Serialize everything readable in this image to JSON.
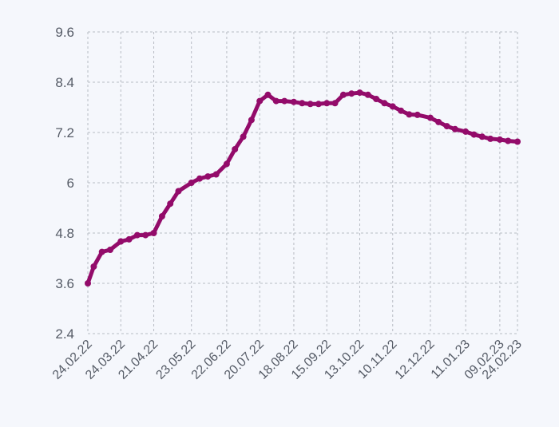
{
  "chart_data": {
    "type": "line",
    "title": "",
    "xlabel": "",
    "ylabel": "",
    "ylim": [
      2.4,
      9.6
    ],
    "y_ticks": [
      "9.6",
      "8.4",
      "7.2",
      "6",
      "4.8",
      "3.6",
      "2.4"
    ],
    "x_tick_labels": [
      "24.02.22",
      "24.03.22",
      "21.04.22",
      "23.05.22",
      "22.06.22",
      "20.07.22",
      "18.08.22",
      "15.09.22",
      "13.10.22",
      "10.11.22",
      "12.12.22",
      "11.01.23",
      "09.02.23",
      "24.02.23"
    ],
    "grid": true,
    "legend": "none",
    "series": [
      {
        "color": "#930b6a",
        "x": [
          "24.02.22",
          "01.03.22",
          "08.03.22",
          "15.03.22",
          "24.03.22",
          "31.03.22",
          "07.04.22",
          "14.04.22",
          "21.04.22",
          "28.04.22",
          "05.05.22",
          "12.05.22",
          "23.05.22",
          "30.05.22",
          "06.06.22",
          "13.06.22",
          "22.06.22",
          "29.06.22",
          "06.07.22",
          "13.07.22",
          "20.07.22",
          "27.07.22",
          "03.08.22",
          "10.08.22",
          "18.08.22",
          "25.08.22",
          "01.09.22",
          "08.09.22",
          "15.09.22",
          "22.09.22",
          "29.09.22",
          "06.10.22",
          "13.10.22",
          "20.10.22",
          "27.10.22",
          "03.11.22",
          "10.11.22",
          "17.11.22",
          "24.11.22",
          "01.12.22",
          "12.12.22",
          "19.12.22",
          "26.12.22",
          "02.01.23",
          "11.01.23",
          "18.01.23",
          "25.01.23",
          "01.02.23",
          "09.02.23",
          "16.02.23",
          "24.02.23"
        ],
        "y": [
          3.6,
          4.0,
          4.35,
          4.4,
          4.6,
          4.65,
          4.75,
          4.75,
          4.8,
          5.2,
          5.5,
          5.8,
          6.0,
          6.1,
          6.15,
          6.2,
          6.45,
          6.8,
          7.1,
          7.5,
          7.95,
          8.1,
          7.95,
          7.95,
          7.93,
          7.9,
          7.88,
          7.88,
          7.9,
          7.9,
          8.1,
          8.13,
          8.15,
          8.1,
          8.0,
          7.9,
          7.82,
          7.72,
          7.63,
          7.62,
          7.55,
          7.45,
          7.35,
          7.28,
          7.22,
          7.15,
          7.1,
          7.05,
          7.03,
          7.0,
          6.98
        ]
      }
    ]
  },
  "colors": {
    "background": "#f5f7fc",
    "grid": "#b8bcc4",
    "line": "#930b6a",
    "text": "#555b66"
  }
}
